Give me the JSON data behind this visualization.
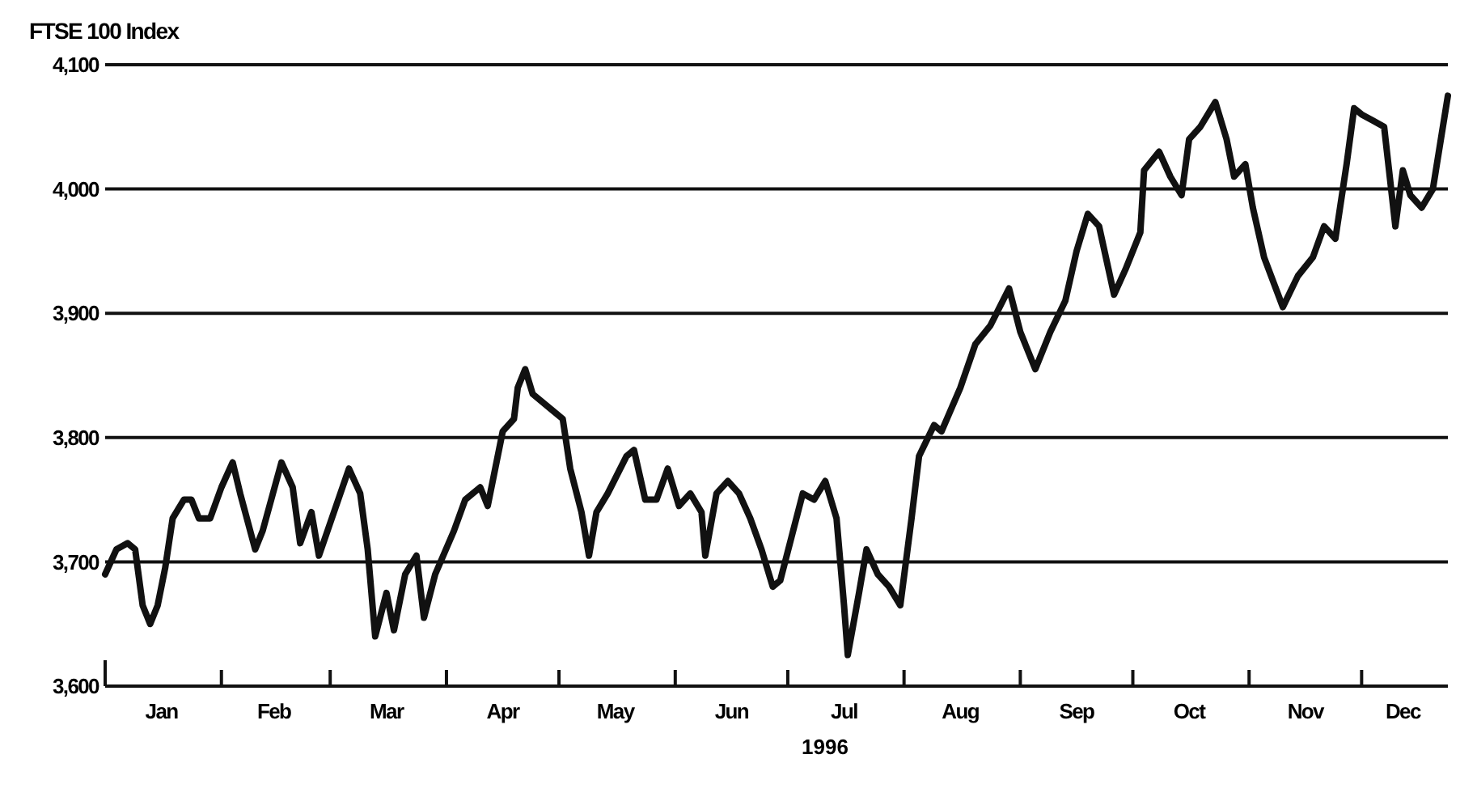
{
  "chart_data": {
    "type": "line",
    "title": "FTSE 100 Index",
    "xlabel": "1996",
    "x": [
      "1996-01-01",
      "1996-01-04",
      "1996-01-07",
      "1996-01-09",
      "1996-01-11",
      "1996-01-13",
      "1996-01-15",
      "1996-01-17",
      "1996-01-19",
      "1996-01-22",
      "1996-01-24",
      "1996-01-26",
      "1996-01-29",
      "1996-02-01",
      "1996-02-04",
      "1996-02-06",
      "1996-02-10",
      "1996-02-12",
      "1996-02-17",
      "1996-02-20",
      "1996-02-22",
      "1996-02-25",
      "1996-02-27",
      "1996-03-02",
      "1996-03-06",
      "1996-03-09",
      "1996-03-11",
      "1996-03-13",
      "1996-03-16",
      "1996-03-18",
      "1996-03-21",
      "1996-03-24",
      "1996-03-26",
      "1996-03-29",
      "1996-04-03",
      "1996-04-06",
      "1996-04-10",
      "1996-04-12",
      "1996-04-16",
      "1996-04-19",
      "1996-04-20",
      "1996-04-22",
      "1996-04-24",
      "1996-05-02",
      "1996-05-04",
      "1996-05-07",
      "1996-05-09",
      "1996-05-11",
      "1996-05-14",
      "1996-05-19",
      "1996-05-21",
      "1996-05-24",
      "1996-05-27",
      "1996-05-30",
      "1996-06-02",
      "1996-06-05",
      "1996-06-08",
      "1996-06-09",
      "1996-06-12",
      "1996-06-15",
      "1996-06-18",
      "1996-06-21",
      "1996-06-24",
      "1996-06-27",
      "1996-06-29",
      "1996-07-02",
      "1996-07-05",
      "1996-07-08",
      "1996-07-11",
      "1996-07-14",
      "1996-07-16",
      "1996-07-17",
      "1996-07-20",
      "1996-07-22",
      "1996-07-25",
      "1996-07-28",
      "1996-07-31",
      "1996-08-03",
      "1996-08-05",
      "1996-08-09",
      "1996-08-11",
      "1996-08-16",
      "1996-08-20",
      "1996-08-24",
      "1996-08-29",
      "1996-09-01",
      "1996-09-05",
      "1996-09-09",
      "1996-09-13",
      "1996-09-16",
      "1996-09-19",
      "1996-09-22",
      "1996-09-26",
      "1996-09-29",
      "1996-10-03",
      "1996-10-04",
      "1996-10-08",
      "1996-10-11",
      "1996-10-14",
      "1996-10-16",
      "1996-10-19",
      "1996-10-23",
      "1996-10-26",
      "1996-10-28",
      "1996-10-31",
      "1996-11-02",
      "1996-11-05",
      "1996-11-10",
      "1996-11-14",
      "1996-11-18",
      "1996-11-21",
      "1996-11-24",
      "1996-11-27",
      "1996-11-29",
      "1996-12-01",
      "1996-12-04",
      "1996-12-07",
      "1996-12-10",
      "1996-12-12",
      "1996-12-14",
      "1996-12-17",
      "1996-12-20",
      "1996-12-24"
    ],
    "series": [
      {
        "color": "#111111",
        "values": [
          3690,
          3710,
          3715,
          3710,
          3665,
          3650,
          3665,
          3695,
          3735,
          3750,
          3750,
          3735,
          3735,
          3760,
          3780,
          3755,
          3710,
          3725,
          3780,
          3760,
          3715,
          3740,
          3705,
          3740,
          3775,
          3755,
          3710,
          3640,
          3675,
          3645,
          3690,
          3705,
          3655,
          3690,
          3725,
          3750,
          3760,
          3745,
          3805,
          3815,
          3840,
          3855,
          3835,
          3815,
          3775,
          3740,
          3705,
          3740,
          3755,
          3785,
          3790,
          3750,
          3750,
          3775,
          3745,
          3755,
          3740,
          3705,
          3755,
          3765,
          3755,
          3735,
          3710,
          3680,
          3685,
          3720,
          3755,
          3750,
          3765,
          3735,
          3665,
          3625,
          3675,
          3710,
          3690,
          3680,
          3665,
          3735,
          3785,
          3810,
          3805,
          3840,
          3875,
          3890,
          3920,
          3885,
          3855,
          3885,
          3910,
          3950,
          3980,
          3970,
          3915,
          3935,
          3965,
          4015,
          4030,
          4010,
          3995,
          4040,
          4050,
          4070,
          4040,
          4010,
          4020,
          3985,
          3945,
          3905,
          3930,
          3945,
          3970,
          3960,
          4020,
          4065,
          4060,
          4055,
          4050,
          3970,
          4015,
          3995,
          3985,
          4000,
          4075
        ]
      }
    ],
    "xlim": [
      "1996-01-01",
      "1996-12-24"
    ],
    "xticks": [
      {
        "value": "1996-01-01",
        "label": null
      },
      {
        "value": "1996-02-01",
        "label": null
      },
      {
        "value": "1996-03-01",
        "label": null
      },
      {
        "value": "1996-04-01",
        "label": null
      },
      {
        "value": "1996-05-01",
        "label": null
      },
      {
        "value": "1996-06-01",
        "label": null
      },
      {
        "value": "1996-07-01",
        "label": null
      },
      {
        "value": "1996-08-01",
        "label": null
      },
      {
        "value": "1996-09-01",
        "label": null
      },
      {
        "value": "1996-10-01",
        "label": null
      },
      {
        "value": "1996-11-01",
        "label": null
      },
      {
        "value": "1996-12-01",
        "label": null
      },
      {
        "value": "1996-01-16",
        "label": "Jan"
      },
      {
        "value": "1996-02-15",
        "label": "Feb"
      },
      {
        "value": "1996-03-16",
        "label": "Mar"
      },
      {
        "value": "1996-04-16",
        "label": "Apr"
      },
      {
        "value": "1996-05-16",
        "label": "May"
      },
      {
        "value": "1996-06-16",
        "label": "Jun"
      },
      {
        "value": "1996-07-16",
        "label": "Jul"
      },
      {
        "value": "1996-08-16",
        "label": "Aug"
      },
      {
        "value": "1996-09-16",
        "label": "Sep"
      },
      {
        "value": "1996-10-16",
        "label": "Oct"
      },
      {
        "value": "1996-11-16",
        "label": "Nov"
      },
      {
        "value": "1996-12-12",
        "label": "Dec"
      }
    ],
    "ylim": [
      3600,
      4100
    ],
    "yticks": [
      {
        "value": 3600,
        "label": "3,600"
      },
      {
        "value": 3700,
        "label": "3,700"
      },
      {
        "value": 3800,
        "label": "3,800"
      },
      {
        "value": 3900,
        "label": "3,900"
      },
      {
        "value": 4000,
        "label": "4,000"
      },
      {
        "value": 4100,
        "label": "4,100"
      }
    ],
    "grid": "y",
    "line_style": "solid",
    "marker": "none"
  }
}
